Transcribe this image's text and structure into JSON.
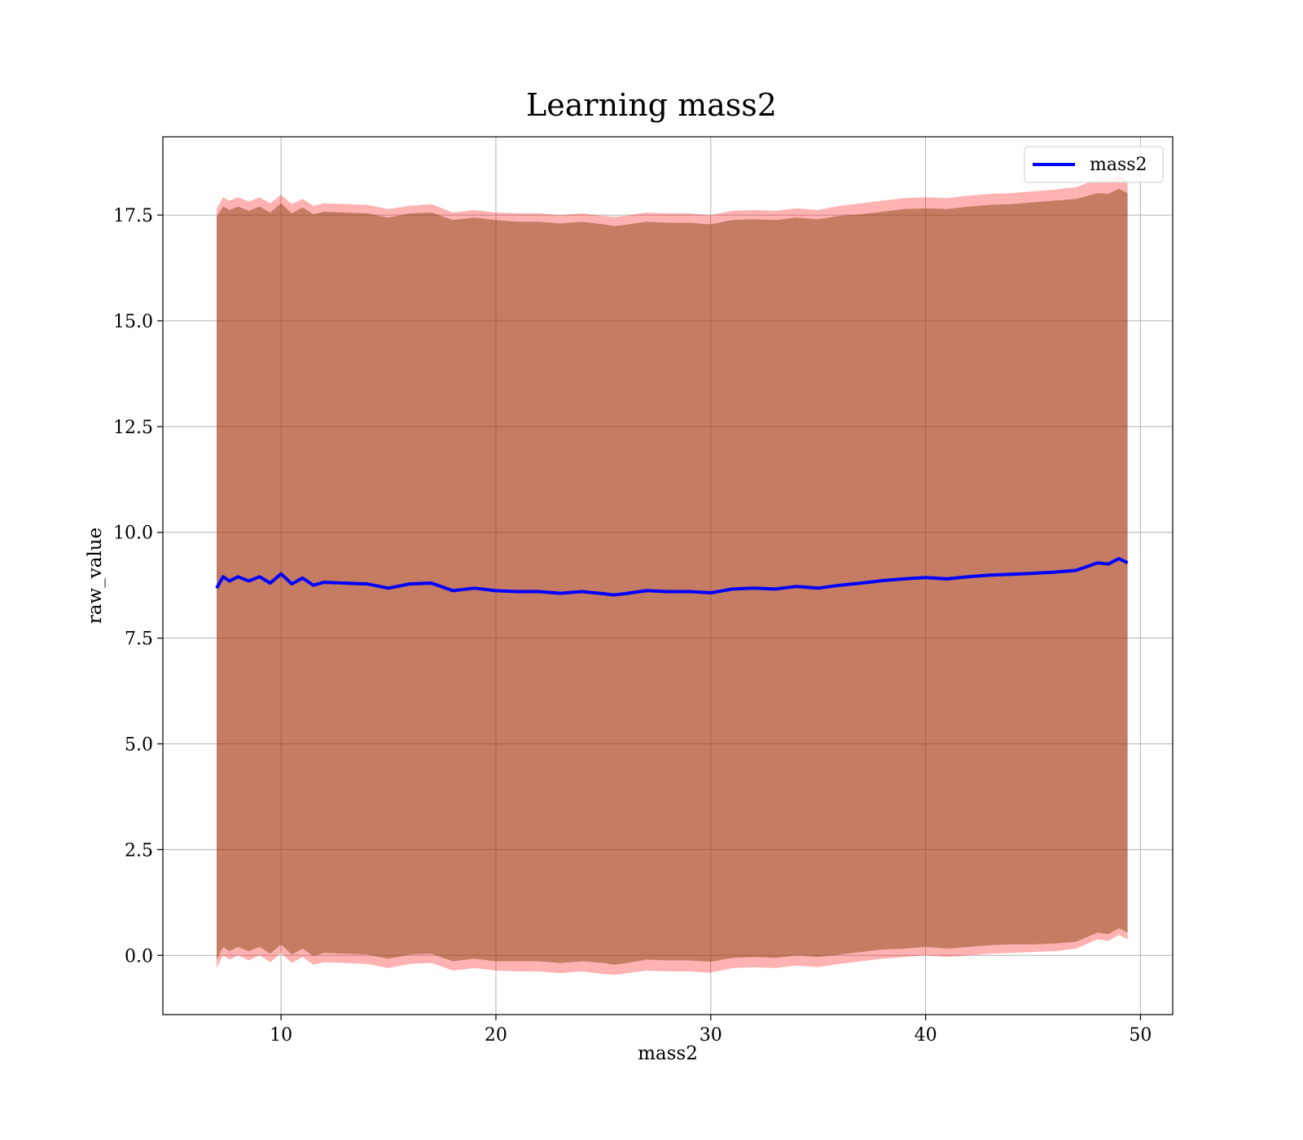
{
  "chart_data": {
    "type": "area",
    "title": "Learning mass2",
    "xlabel": "mass2",
    "ylabel": "raw_value",
    "xlim": [
      4.5,
      51.5
    ],
    "ylim": [
      -1.4,
      19.35
    ],
    "xticks": [
      10,
      20,
      30,
      40,
      50
    ],
    "xtick_labels": [
      "10",
      "20",
      "30",
      "40",
      "50"
    ],
    "yticks": [
      0.0,
      2.5,
      5.0,
      7.5,
      10.0,
      12.5,
      15.0,
      17.5
    ],
    "ytick_labels": [
      "0.0",
      "2.5",
      "5.0",
      "7.5",
      "10.0",
      "12.5",
      "15.0",
      "17.5"
    ],
    "grid": true,
    "legend": {
      "position": "top-right",
      "entries": [
        "mass2"
      ]
    },
    "series": [
      {
        "name": "mass2",
        "color": "#0000ff",
        "x": [
          7.0,
          7.3,
          7.6,
          8.0,
          8.5,
          9.0,
          9.5,
          10.0,
          10.5,
          11.0,
          11.5,
          12.0,
          13.0,
          14.0,
          15.0,
          16.0,
          17.0,
          18.0,
          19.0,
          20.0,
          21.0,
          22.0,
          23.0,
          24.0,
          25.0,
          25.5,
          26.0,
          27.0,
          28.0,
          29.0,
          30.0,
          31.0,
          32.0,
          33.0,
          34.0,
          35.0,
          36.0,
          37.0,
          38.0,
          39.0,
          40.0,
          41.0,
          42.0,
          43.0,
          44.0,
          45.0,
          46.0,
          47.0,
          48.0,
          48.5,
          49.0,
          49.4
        ],
        "y": [
          8.68,
          8.95,
          8.85,
          8.95,
          8.85,
          8.95,
          8.8,
          9.02,
          8.78,
          8.92,
          8.75,
          8.82,
          8.8,
          8.78,
          8.68,
          8.78,
          8.8,
          8.62,
          8.68,
          8.62,
          8.6,
          8.6,
          8.56,
          8.6,
          8.55,
          8.52,
          8.55,
          8.62,
          8.6,
          8.6,
          8.57,
          8.66,
          8.68,
          8.66,
          8.72,
          8.68,
          8.75,
          8.8,
          8.86,
          8.9,
          8.93,
          8.9,
          8.95,
          8.99,
          9.01,
          9.03,
          9.06,
          9.1,
          9.28,
          9.25,
          9.38,
          9.28
        ],
        "band_inner": {
          "color": "#8b4513",
          "upper": [
            17.45,
            17.7,
            17.62,
            17.7,
            17.6,
            17.7,
            17.56,
            17.78,
            17.54,
            17.68,
            17.52,
            17.58,
            17.56,
            17.54,
            17.44,
            17.54,
            17.56,
            17.38,
            17.44,
            17.38,
            17.34,
            17.34,
            17.3,
            17.34,
            17.28,
            17.24,
            17.27,
            17.34,
            17.32,
            17.32,
            17.28,
            17.38,
            17.4,
            17.38,
            17.44,
            17.4,
            17.48,
            17.52,
            17.58,
            17.64,
            17.66,
            17.64,
            17.7,
            17.74,
            17.76,
            17.8,
            17.84,
            17.88,
            18.02,
            18.0,
            18.12,
            18.02
          ],
          "lower": [
            -0.1,
            0.2,
            0.1,
            0.2,
            0.1,
            0.2,
            0.04,
            0.26,
            0.02,
            0.16,
            -0.02,
            0.06,
            0.04,
            0.02,
            -0.08,
            0.02,
            0.04,
            -0.14,
            -0.08,
            -0.14,
            -0.14,
            -0.14,
            -0.18,
            -0.14,
            -0.18,
            -0.22,
            -0.19,
            -0.1,
            -0.12,
            -0.12,
            -0.15,
            -0.06,
            -0.04,
            -0.06,
            0.0,
            -0.04,
            0.02,
            0.08,
            0.14,
            0.16,
            0.2,
            0.16,
            0.2,
            0.24,
            0.26,
            0.26,
            0.28,
            0.32,
            0.54,
            0.5,
            0.64,
            0.54
          ]
        },
        "band_outer": {
          "color": "#ff0000",
          "upper": [
            17.65,
            17.92,
            17.84,
            17.92,
            17.82,
            17.92,
            17.78,
            17.98,
            17.76,
            17.88,
            17.72,
            17.78,
            17.76,
            17.74,
            17.64,
            17.72,
            17.76,
            17.56,
            17.62,
            17.56,
            17.54,
            17.54,
            17.5,
            17.54,
            17.48,
            17.46,
            17.48,
            17.56,
            17.54,
            17.54,
            17.5,
            17.6,
            17.62,
            17.6,
            17.66,
            17.62,
            17.72,
            17.78,
            17.84,
            17.9,
            17.92,
            17.9,
            17.96,
            18.0,
            18.02,
            18.06,
            18.1,
            18.16,
            18.34,
            18.3,
            18.42,
            18.32
          ],
          "lower": [
            -0.3,
            0.0,
            -0.1,
            0.0,
            -0.12,
            0.0,
            -0.16,
            0.06,
            -0.18,
            -0.04,
            -0.22,
            -0.16,
            -0.18,
            -0.2,
            -0.3,
            -0.2,
            -0.18,
            -0.36,
            -0.3,
            -0.36,
            -0.38,
            -0.38,
            -0.42,
            -0.38,
            -0.44,
            -0.46,
            -0.43,
            -0.36,
            -0.38,
            -0.38,
            -0.41,
            -0.3,
            -0.28,
            -0.3,
            -0.24,
            -0.28,
            -0.2,
            -0.14,
            -0.08,
            -0.04,
            0.0,
            -0.04,
            0.0,
            0.04,
            0.06,
            0.08,
            0.1,
            0.16,
            0.38,
            0.34,
            0.48,
            0.38
          ]
        }
      }
    ]
  }
}
